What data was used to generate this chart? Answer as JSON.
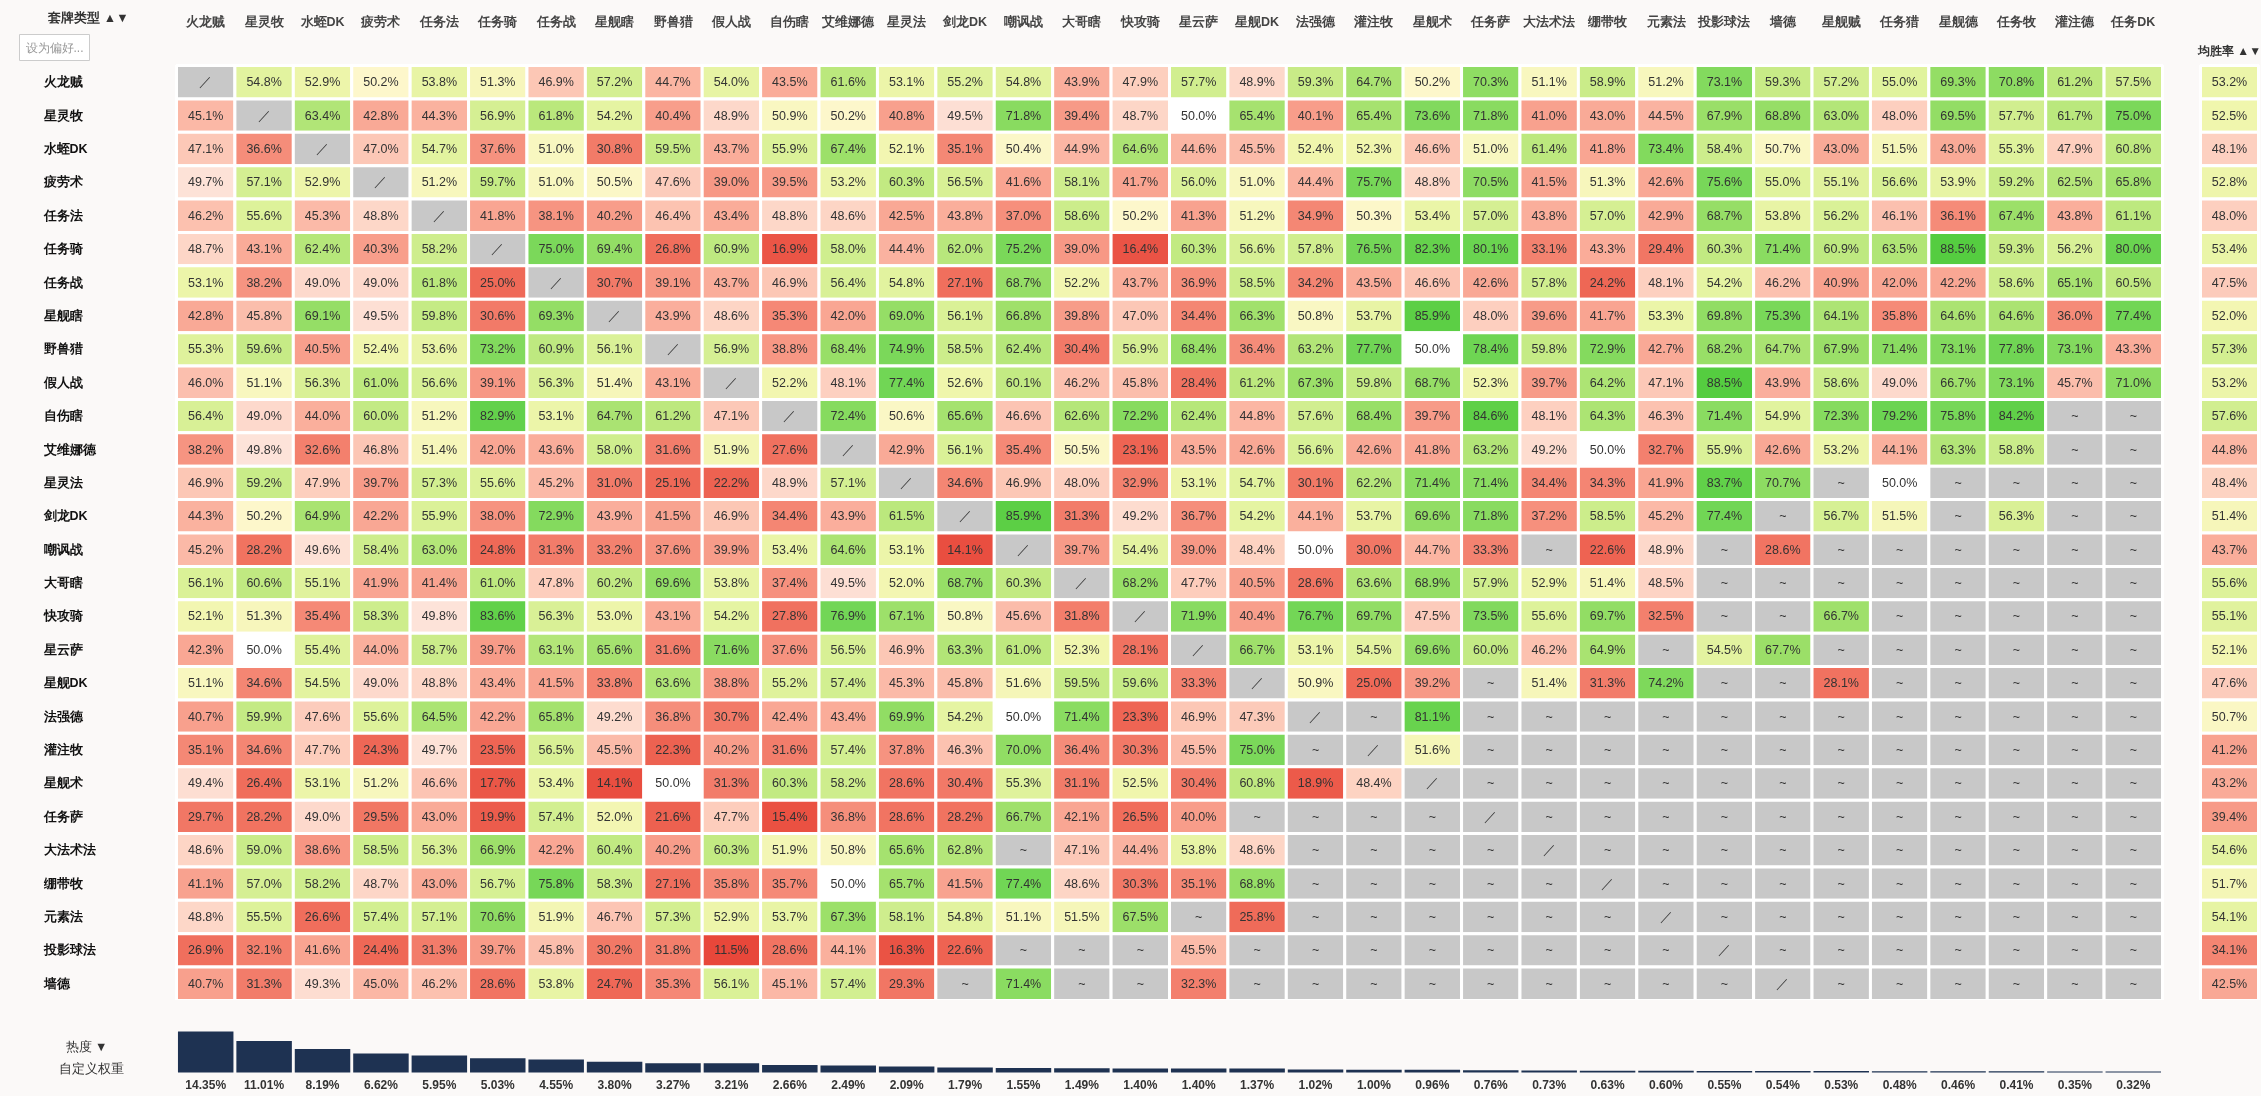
{
  "chart_data": [
    {
      "type": "heatmap",
      "ylabel": "套牌类型 ▲▼",
      "annotations": [
        "设为偏好..."
      ],
      "categories": [
        "火龙贼",
        "星灵牧",
        "水蛭DK",
        "疲劳术",
        "任务法",
        "任务骑",
        "任务战",
        "星舰瞎",
        "野兽猎",
        "假人战",
        "自伤瞎",
        "艾维娜德",
        "星灵法",
        "剑龙DK",
        "嘲讽战",
        "大哥瞎",
        "快攻骑",
        "星云萨",
        "星舰DK",
        "法强德",
        "灌注牧",
        "星舰术",
        "任务萨",
        "大法术法",
        "绷带牧",
        "元素法",
        "投影球法",
        "墙德",
        "星舰贼",
        "任务猎",
        "星舰德",
        "任务牧",
        "灌注德",
        "任务DK"
      ],
      "y_categories": [
        "火龙贼",
        "星灵牧",
        "水蛭DK",
        "疲劳术",
        "任务法",
        "任务骑",
        "任务战",
        "星舰瞎",
        "野兽猎",
        "假人战",
        "自伤瞎",
        "艾维娜德",
        "星灵法",
        "剑龙DK",
        "嘲讽战",
        "大哥瞎",
        "快攻骑",
        "星云萨",
        "星舰DK",
        "法强德",
        "灌注牧",
        "星舰术",
        "任务萨",
        "大法术法",
        "绷带牧",
        "元素法",
        "投影球法",
        "墙德"
      ],
      "cells": [
        [
          null,
          54.8,
          52.9,
          50.2,
          53.8,
          51.3,
          46.9,
          57.2,
          44.7,
          54.0,
          43.5,
          61.6,
          53.1,
          55.2,
          54.8,
          43.9,
          47.9,
          57.7,
          48.9,
          59.3,
          64.7,
          50.2,
          70.3,
          51.1,
          58.9,
          51.2,
          73.1,
          59.3,
          57.2,
          55.0,
          69.3,
          70.8,
          61.2,
          57.5
        ],
        [
          45.1,
          null,
          63.4,
          42.8,
          44.3,
          56.9,
          61.8,
          54.2,
          40.4,
          48.9,
          50.9,
          50.2,
          40.8,
          49.5,
          71.8,
          39.4,
          48.7,
          50.0,
          65.4,
          40.1,
          65.4,
          73.6,
          71.8,
          41.0,
          43.0,
          44.5,
          67.9,
          68.8,
          63.0,
          48.0,
          69.5,
          57.7,
          61.7,
          75.0
        ],
        [
          47.1,
          36.6,
          null,
          47.0,
          54.7,
          37.6,
          51.0,
          30.8,
          59.5,
          43.7,
          55.9,
          67.4,
          52.1,
          35.1,
          50.4,
          44.9,
          64.6,
          44.6,
          45.5,
          52.4,
          52.3,
          46.6,
          51.0,
          61.4,
          41.8,
          73.4,
          58.4,
          50.7,
          43.0,
          51.5,
          43.0,
          55.3,
          47.9,
          60.8
        ],
        [
          49.7,
          57.1,
          52.9,
          null,
          51.2,
          59.7,
          51.0,
          50.5,
          47.6,
          39.0,
          39.5,
          53.2,
          60.3,
          56.5,
          41.6,
          58.1,
          41.7,
          56.0,
          51.0,
          44.4,
          75.7,
          48.8,
          70.5,
          41.5,
          51.3,
          42.6,
          75.6,
          55.0,
          55.1,
          56.6,
          53.9,
          59.2,
          62.5,
          65.8
        ],
        [
          46.2,
          55.6,
          45.3,
          48.8,
          null,
          41.8,
          38.1,
          40.2,
          46.4,
          43.4,
          48.8,
          48.6,
          42.5,
          43.8,
          37.0,
          58.6,
          50.2,
          41.3,
          51.2,
          34.9,
          50.3,
          53.4,
          57.0,
          43.8,
          57.0,
          42.9,
          68.7,
          53.8,
          56.2,
          46.1,
          36.1,
          67.4,
          43.8,
          61.1
        ],
        [
          48.7,
          43.1,
          62.4,
          40.3,
          58.2,
          null,
          75.0,
          69.4,
          26.8,
          60.9,
          16.9,
          58.0,
          44.4,
          62.0,
          75.2,
          39.0,
          16.4,
          60.3,
          56.6,
          57.8,
          76.5,
          82.3,
          80.1,
          33.1,
          43.3,
          29.4,
          60.3,
          71.4,
          60.9,
          63.5,
          88.5,
          59.3,
          56.2,
          80.0
        ],
        [
          53.1,
          38.2,
          49.0,
          49.0,
          61.8,
          25.0,
          null,
          30.7,
          39.1,
          43.7,
          46.9,
          56.4,
          54.8,
          27.1,
          68.7,
          52.2,
          43.7,
          36.9,
          58.5,
          34.2,
          43.5,
          46.6,
          42.6,
          57.8,
          24.2,
          48.1,
          54.2,
          46.2,
          40.9,
          42.0,
          42.2,
          58.6,
          65.1,
          60.5
        ],
        [
          42.8,
          45.8,
          69.1,
          49.5,
          59.8,
          30.6,
          69.3,
          null,
          43.9,
          48.6,
          35.3,
          42.0,
          69.0,
          56.1,
          66.8,
          39.8,
          47.0,
          34.4,
          66.3,
          50.8,
          53.7,
          85.9,
          48.0,
          39.6,
          41.7,
          53.3,
          69.8,
          75.3,
          64.1,
          35.8,
          64.6,
          64.6,
          36.0,
          77.4
        ],
        [
          55.3,
          59.6,
          40.5,
          52.4,
          53.6,
          73.2,
          60.9,
          56.1,
          null,
          56.9,
          38.8,
          68.4,
          74.9,
          58.5,
          62.4,
          30.4,
          56.9,
          68.4,
          36.4,
          63.2,
          77.7,
          50.0,
          78.4,
          59.8,
          72.9,
          42.7,
          68.2,
          64.7,
          67.9,
          71.4,
          73.1,
          77.8,
          73.1,
          43.3
        ],
        [
          46.0,
          51.1,
          56.3,
          61.0,
          56.6,
          39.1,
          56.3,
          51.4,
          43.1,
          null,
          52.2,
          48.1,
          77.4,
          52.6,
          60.1,
          46.2,
          45.8,
          28.4,
          61.2,
          67.3,
          59.8,
          68.7,
          52.3,
          39.7,
          64.2,
          47.1,
          88.5,
          43.9,
          58.6,
          49.0,
          66.7,
          73.1,
          45.7,
          71.0
        ],
        [
          56.4,
          49.0,
          44.0,
          60.0,
          51.2,
          82.9,
          53.1,
          64.7,
          61.2,
          47.1,
          null,
          72.4,
          50.6,
          65.6,
          46.6,
          62.6,
          72.2,
          62.4,
          44.8,
          57.6,
          68.4,
          39.7,
          84.6,
          48.1,
          64.3,
          46.3,
          71.4,
          54.9,
          72.3,
          79.2,
          75.8,
          84.2,
          null,
          null
        ],
        [
          38.2,
          49.8,
          32.6,
          46.8,
          51.4,
          42.0,
          43.6,
          58.0,
          31.6,
          51.9,
          27.6,
          null,
          42.9,
          56.1,
          35.4,
          50.5,
          23.1,
          43.5,
          42.6,
          56.6,
          42.6,
          41.8,
          63.2,
          49.2,
          50.0,
          32.7,
          55.9,
          42.6,
          53.2,
          44.1,
          63.3,
          58.8,
          null,
          null
        ],
        [
          46.9,
          59.2,
          47.9,
          39.7,
          57.3,
          55.6,
          45.2,
          31.0,
          25.1,
          22.2,
          48.9,
          57.1,
          null,
          34.6,
          46.9,
          48.0,
          32.9,
          53.1,
          54.7,
          30.1,
          62.2,
          71.4,
          71.4,
          34.4,
          34.3,
          41.9,
          83.7,
          70.7,
          null,
          50.0,
          null,
          null,
          null,
          null
        ],
        [
          44.3,
          50.2,
          64.9,
          42.2,
          55.9,
          38.0,
          72.9,
          43.9,
          41.5,
          46.9,
          34.4,
          43.9,
          61.5,
          null,
          85.9,
          31.3,
          49.2,
          36.7,
          54.2,
          44.1,
          53.7,
          69.6,
          71.8,
          37.2,
          58.5,
          45.2,
          77.4,
          null,
          56.7,
          51.5,
          null,
          56.3,
          null,
          null
        ],
        [
          45.2,
          28.2,
          49.6,
          58.4,
          63.0,
          24.8,
          31.3,
          33.2,
          37.6,
          39.9,
          53.4,
          64.6,
          53.1,
          14.1,
          null,
          39.7,
          54.4,
          39.0,
          48.4,
          50.0,
          30.0,
          44.7,
          33.3,
          null,
          22.6,
          48.9,
          null,
          28.6,
          null,
          null,
          null,
          null,
          null,
          null
        ],
        [
          56.1,
          60.6,
          55.1,
          41.9,
          41.4,
          61.0,
          47.8,
          60.2,
          69.6,
          53.8,
          37.4,
          49.5,
          52.0,
          68.7,
          60.3,
          null,
          68.2,
          47.7,
          40.5,
          28.6,
          63.6,
          68.9,
          57.9,
          52.9,
          51.4,
          48.5,
          null,
          null,
          null,
          null,
          null,
          null,
          null,
          null
        ],
        [
          52.1,
          51.3,
          35.4,
          58.3,
          49.8,
          83.6,
          56.3,
          53.0,
          43.1,
          54.2,
          27.8,
          76.9,
          67.1,
          50.8,
          45.6,
          31.8,
          null,
          71.9,
          40.4,
          76.7,
          69.7,
          47.5,
          73.5,
          55.6,
          69.7,
          32.5,
          null,
          null,
          66.7,
          null,
          null,
          null,
          null,
          null
        ],
        [
          42.3,
          50.0,
          55.4,
          44.0,
          58.7,
          39.7,
          63.1,
          65.6,
          31.6,
          71.6,
          37.6,
          56.5,
          46.9,
          63.3,
          61.0,
          52.3,
          28.1,
          null,
          66.7,
          53.1,
          54.5,
          69.6,
          60.0,
          46.2,
          64.9,
          null,
          54.5,
          67.7,
          null,
          null,
          null,
          null,
          null,
          null
        ],
        [
          51.1,
          34.6,
          54.5,
          49.0,
          48.8,
          43.4,
          41.5,
          33.8,
          63.6,
          38.8,
          55.2,
          57.4,
          45.3,
          45.8,
          51.6,
          59.5,
          59.6,
          33.3,
          null,
          50.9,
          25.0,
          39.2,
          null,
          51.4,
          31.3,
          74.2,
          null,
          null,
          28.1,
          null,
          null,
          null,
          null,
          null
        ],
        [
          40.7,
          59.9,
          47.6,
          55.6,
          64.5,
          42.2,
          65.8,
          49.2,
          36.8,
          30.7,
          42.4,
          43.4,
          69.9,
          54.2,
          50.0,
          71.4,
          23.3,
          46.9,
          47.3,
          null,
          null,
          81.1,
          null,
          null,
          null,
          null,
          null,
          null,
          null,
          null,
          null,
          null,
          null,
          null
        ],
        [
          35.1,
          34.6,
          47.7,
          24.3,
          49.7,
          23.5,
          56.5,
          45.5,
          22.3,
          40.2,
          31.6,
          57.4,
          37.8,
          46.3,
          70.0,
          36.4,
          30.3,
          45.5,
          75.0,
          null,
          null,
          51.6,
          null,
          null,
          null,
          null,
          null,
          null,
          null,
          null,
          null,
          null,
          null,
          null
        ],
        [
          49.4,
          26.4,
          53.1,
          51.2,
          46.6,
          17.7,
          53.4,
          14.1,
          50.0,
          31.3,
          60.3,
          58.2,
          28.6,
          30.4,
          55.3,
          31.1,
          52.5,
          30.4,
          60.8,
          18.9,
          48.4,
          null,
          null,
          null,
          null,
          null,
          null,
          null,
          null,
          null,
          null,
          null,
          null,
          null
        ],
        [
          29.7,
          28.2,
          49.0,
          29.5,
          43.0,
          19.9,
          57.4,
          52.0,
          21.6,
          47.7,
          15.4,
          36.8,
          28.6,
          28.2,
          66.7,
          42.1,
          26.5,
          40.0,
          null,
          null,
          null,
          null,
          null,
          null,
          null,
          null,
          null,
          null,
          null,
          null,
          null,
          null,
          null,
          null
        ],
        [
          48.6,
          59.0,
          38.6,
          58.5,
          56.3,
          66.9,
          42.2,
          60.4,
          40.2,
          60.3,
          51.9,
          50.8,
          65.6,
          62.8,
          null,
          47.1,
          44.4,
          53.8,
          48.6,
          null,
          null,
          null,
          null,
          null,
          null,
          null,
          null,
          null,
          null,
          null,
          null,
          null,
          null,
          null
        ],
        [
          41.1,
          57.0,
          58.2,
          48.7,
          43.0,
          56.7,
          75.8,
          58.3,
          27.1,
          35.8,
          35.7,
          50.0,
          65.7,
          41.5,
          77.4,
          48.6,
          30.3,
          35.1,
          68.8,
          null,
          null,
          null,
          null,
          null,
          null,
          null,
          null,
          null,
          null,
          null,
          null,
          null,
          null,
          null
        ],
        [
          48.8,
          55.5,
          26.6,
          57.4,
          57.1,
          70.6,
          51.9,
          46.7,
          57.3,
          52.9,
          53.7,
          67.3,
          58.1,
          54.8,
          51.1,
          51.5,
          67.5,
          null,
          25.8,
          null,
          null,
          null,
          null,
          null,
          null,
          null,
          null,
          null,
          null,
          null,
          null,
          null,
          null,
          null
        ],
        [
          26.9,
          32.1,
          41.6,
          24.4,
          31.3,
          39.7,
          45.8,
          30.2,
          31.8,
          11.5,
          28.6,
          44.1,
          16.3,
          22.6,
          null,
          null,
          null,
          45.5,
          null,
          null,
          null,
          null,
          null,
          null,
          null,
          null,
          null,
          null,
          null,
          null,
          null,
          null,
          null,
          null
        ],
        [
          40.7,
          31.3,
          49.3,
          45.0,
          46.2,
          28.6,
          53.8,
          24.7,
          35.3,
          56.1,
          45.1,
          57.4,
          29.3,
          null,
          71.4,
          null,
          null,
          32.3,
          null,
          null,
          null,
          null,
          null,
          null,
          null,
          null,
          null,
          null,
          null,
          null,
          null,
          null,
          null,
          null
        ]
      ],
      "cell_labels": [
        [
          "／",
          "54.8%",
          "52.9%",
          "50.2%",
          "53.8%",
          "51.3%",
          "46.9%",
          "57.2%",
          "44.7%",
          "54.0%",
          "43.5%",
          "61.6%",
          "53.1%",
          "55.2%",
          "54.8%",
          "43.9%",
          "47.9%",
          "57.7%",
          "48.9%",
          "59.3%",
          "64.7%",
          "50.2%",
          "70.3%",
          "51.1%",
          "58.9%",
          "51.2%",
          "73.1%",
          "59.3%",
          "57.2%",
          "55.0%",
          "69.3%",
          "70.8%",
          "61.2%",
          "57.5%"
        ],
        [
          "45.1%",
          "／",
          "63.4%",
          "42.8%",
          "44.3%",
          "56.9%",
          "61.8%",
          "54.2%",
          "40.4%",
          "48.9%",
          "50.9%",
          "50.2%",
          "40.8%",
          "49.5%",
          "71.8%",
          "39.4%",
          "48.7%",
          "50.0%",
          "65.4%",
          "40.1%",
          "65.4%",
          "73.6%",
          "71.8%",
          "41.0%",
          "43.0%",
          "44.5%",
          "67.9%",
          "68.8%",
          "63.0%",
          "48.0%",
          "69.5%",
          "57.7%",
          "61.7%",
          "75.0%"
        ],
        [
          "47.1%",
          "36.6%",
          "／",
          "47.0%",
          "54.7%",
          "37.6%",
          "51.0%",
          "30.8%",
          "59.5%",
          "43.7%",
          "55.9%",
          "67.4%",
          "52.1%",
          "35.1%",
          "50.4%",
          "44.9%",
          "64.6%",
          "44.6%",
          "45.5%",
          "52.4%",
          "52.3%",
          "46.6%",
          "51.0%",
          "61.4%",
          "41.8%",
          "73.4%",
          "58.4%",
          "50.7%",
          "43.0%",
          "51.5%",
          "43.0%",
          "55.3%",
          "47.9%",
          "60.8%"
        ],
        [
          "49.7%",
          "57.1%",
          "52.9%",
          "／",
          "51.2%",
          "59.7%",
          "51.0%",
          "50.5%",
          "47.6%",
          "39.0%",
          "39.5%",
          "53.2%",
          "60.3%",
          "56.5%",
          "41.6%",
          "58.1%",
          "41.7%",
          "56.0%",
          "51.0%",
          "44.4%",
          "75.7%",
          "48.8%",
          "70.5%",
          "41.5%",
          "51.3%",
          "42.6%",
          "75.6%",
          "55.0%",
          "55.1%",
          "56.6%",
          "53.9%",
          "59.2%",
          "62.5%",
          "65.8%"
        ],
        [
          "46.2%",
          "55.6%",
          "45.3%",
          "48.8%",
          "／",
          "41.8%",
          "38.1%",
          "40.2%",
          "46.4%",
          "43.4%",
          "48.8%",
          "48.6%",
          "42.5%",
          "43.8%",
          "37.0%",
          "58.6%",
          "50.2%",
          "41.3%",
          "51.2%",
          "34.9%",
          "50.3%",
          "53.4%",
          "57.0%",
          "43.8%",
          "57.0%",
          "42.9%",
          "68.7%",
          "53.8%",
          "56.2%",
          "46.1%",
          "36.1%",
          "67.4%",
          "43.8%",
          "61.1%"
        ],
        [
          "48.7%",
          "43.1%",
          "62.4%",
          "40.3%",
          "58.2%",
          "／",
          "75.0%",
          "69.4%",
          "26.8%",
          "60.9%",
          "16.9%",
          "58.0%",
          "44.4%",
          "62.0%",
          "75.2%",
          "39.0%",
          "16.4%",
          "60.3%",
          "56.6%",
          "57.8%",
          "76.5%",
          "82.3%",
          "80.1%",
          "33.1%",
          "43.3%",
          "29.4%",
          "60.3%",
          "71.4%",
          "60.9%",
          "63.5%",
          "88.5%",
          "59.3%",
          "56.2%",
          "80.0%"
        ],
        [
          "53.1%",
          "38.2%",
          "49.0%",
          "49.0%",
          "61.8%",
          "25.0%",
          "／",
          "30.7%",
          "39.1%",
          "43.7%",
          "46.9%",
          "56.4%",
          "54.8%",
          "27.1%",
          "68.7%",
          "52.2%",
          "43.7%",
          "36.9%",
          "58.5%",
          "34.2%",
          "43.5%",
          "46.6%",
          "42.6%",
          "57.8%",
          "24.2%",
          "48.1%",
          "54.2%",
          "46.2%",
          "40.9%",
          "42.0%",
          "42.2%",
          "58.6%",
          "65.1%",
          "60.5%"
        ],
        [
          "42.8%",
          "45.8%",
          "69.1%",
          "49.5%",
          "59.8%",
          "30.6%",
          "69.3%",
          "／",
          "43.9%",
          "48.6%",
          "35.3%",
          "42.0%",
          "69.0%",
          "56.1%",
          "66.8%",
          "39.8%",
          "47.0%",
          "34.4%",
          "66.3%",
          "50.8%",
          "53.7%",
          "85.9%",
          "48.0%",
          "39.6%",
          "41.7%",
          "53.3%",
          "69.8%",
          "75.3%",
          "64.1%",
          "35.8%",
          "64.6%",
          "64.6%",
          "36.0%",
          "77.4%"
        ],
        [
          "55.3%",
          "59.6%",
          "40.5%",
          "52.4%",
          "53.6%",
          "73.2%",
          "60.9%",
          "56.1%",
          "／",
          "56.9%",
          "38.8%",
          "68.4%",
          "74.9%",
          "58.5%",
          "62.4%",
          "30.4%",
          "56.9%",
          "68.4%",
          "36.4%",
          "63.2%",
          "77.7%",
          "50.0%",
          "78.4%",
          "59.8%",
          "72.9%",
          "42.7%",
          "68.2%",
          "64.7%",
          "67.9%",
          "71.4%",
          "73.1%",
          "77.8%",
          "73.1%",
          "43.3%"
        ],
        [
          "46.0%",
          "51.1%",
          "56.3%",
          "61.0%",
          "56.6%",
          "39.1%",
          "56.3%",
          "51.4%",
          "43.1%",
          "／",
          "52.2%",
          "48.1%",
          "77.4%",
          "52.6%",
          "60.1%",
          "46.2%",
          "45.8%",
          "28.4%",
          "61.2%",
          "67.3%",
          "59.8%",
          "68.7%",
          "52.3%",
          "39.7%",
          "64.2%",
          "47.1%",
          "88.5%",
          "43.9%",
          "58.6%",
          "49.0%",
          "66.7%",
          "73.1%",
          "45.7%",
          "71.0%"
        ],
        [
          "56.4%",
          "49.0%",
          "44.0%",
          "60.0%",
          "51.2%",
          "82.9%",
          "53.1%",
          "64.7%",
          "61.2%",
          "47.1%",
          "／",
          "72.4%",
          "50.6%",
          "65.6%",
          "46.6%",
          "62.6%",
          "72.2%",
          "62.4%",
          "44.8%",
          "57.6%",
          "68.4%",
          "39.7%",
          "84.6%",
          "48.1%",
          "64.3%",
          "46.3%",
          "71.4%",
          "54.9%",
          "72.3%",
          "79.2%",
          "75.8%",
          "84.2%",
          "~",
          "~"
        ],
        [
          "38.2%",
          "49.8%",
          "32.6%",
          "46.8%",
          "51.4%",
          "42.0%",
          "43.6%",
          "58.0%",
          "31.6%",
          "51.9%",
          "27.6%",
          "／",
          "42.9%",
          "56.1%",
          "35.4%",
          "50.5%",
          "23.1%",
          "43.5%",
          "42.6%",
          "56.6%",
          "42.6%",
          "41.8%",
          "63.2%",
          "49.2%",
          "50.0%",
          "32.7%",
          "55.9%",
          "42.6%",
          "53.2%",
          "44.1%",
          "63.3%",
          "58.8%",
          "~",
          "~"
        ],
        [
          "46.9%",
          "59.2%",
          "47.9%",
          "39.7%",
          "57.3%",
          "55.6%",
          "45.2%",
          "31.0%",
          "25.1%",
          "22.2%",
          "48.9%",
          "57.1%",
          "／",
          "34.6%",
          "46.9%",
          "48.0%",
          "32.9%",
          "53.1%",
          "54.7%",
          "30.1%",
          "62.2%",
          "71.4%",
          "71.4%",
          "34.4%",
          "34.3%",
          "41.9%",
          "83.7%",
          "70.7%",
          "~",
          "50.0%",
          "~",
          "~",
          "~",
          "~"
        ],
        [
          "44.3%",
          "50.2%",
          "64.9%",
          "42.2%",
          "55.9%",
          "38.0%",
          "72.9%",
          "43.9%",
          "41.5%",
          "46.9%",
          "34.4%",
          "43.9%",
          "61.5%",
          "／",
          "85.9%",
          "31.3%",
          "49.2%",
          "36.7%",
          "54.2%",
          "44.1%",
          "53.7%",
          "69.6%",
          "71.8%",
          "37.2%",
          "58.5%",
          "45.2%",
          "77.4%",
          "~",
          "56.7%",
          "51.5%",
          "~",
          "56.3%",
          "~",
          "~"
        ],
        [
          "45.2%",
          "28.2%",
          "49.6%",
          "58.4%",
          "63.0%",
          "24.8%",
          "31.3%",
          "33.2%",
          "37.6%",
          "39.9%",
          "53.4%",
          "64.6%",
          "53.1%",
          "14.1%",
          "／",
          "39.7%",
          "54.4%",
          "39.0%",
          "48.4%",
          "50.0%",
          "30.0%",
          "44.7%",
          "33.3%",
          "~",
          "22.6%",
          "48.9%",
          "~",
          "28.6%",
          "~",
          "~",
          "~",
          "~",
          "~",
          "~"
        ],
        [
          "56.1%",
          "60.6%",
          "55.1%",
          "41.9%",
          "41.4%",
          "61.0%",
          "47.8%",
          "60.2%",
          "69.6%",
          "53.8%",
          "37.4%",
          "49.5%",
          "52.0%",
          "68.7%",
          "60.3%",
          "／",
          "68.2%",
          "47.7%",
          "40.5%",
          "28.6%",
          "63.6%",
          "68.9%",
          "57.9%",
          "52.9%",
          "51.4%",
          "48.5%",
          "~",
          "~",
          "~",
          "~",
          "~",
          "~",
          "~",
          "~"
        ],
        [
          "52.1%",
          "51.3%",
          "35.4%",
          "58.3%",
          "49.8%",
          "83.6%",
          "56.3%",
          "53.0%",
          "43.1%",
          "54.2%",
          "27.8%",
          "76.9%",
          "67.1%",
          "50.8%",
          "45.6%",
          "31.8%",
          "／",
          "71.9%",
          "40.4%",
          "76.7%",
          "69.7%",
          "47.5%",
          "73.5%",
          "55.6%",
          "69.7%",
          "32.5%",
          "~",
          "~",
          "66.7%",
          "~",
          "~",
          "~",
          "~",
          "~"
        ],
        [
          "42.3%",
          "50.0%",
          "55.4%",
          "44.0%",
          "58.7%",
          "39.7%",
          "63.1%",
          "65.6%",
          "31.6%",
          "71.6%",
          "37.6%",
          "56.5%",
          "46.9%",
          "63.3%",
          "61.0%",
          "52.3%",
          "28.1%",
          "／",
          "66.7%",
          "53.1%",
          "54.5%",
          "69.6%",
          "60.0%",
          "46.2%",
          "64.9%",
          "~",
          "54.5%",
          "67.7%",
          "~",
          "~",
          "~",
          "~",
          "~",
          "~"
        ],
        [
          "51.1%",
          "34.6%",
          "54.5%",
          "49.0%",
          "48.8%",
          "43.4%",
          "41.5%",
          "33.8%",
          "63.6%",
          "38.8%",
          "55.2%",
          "57.4%",
          "45.3%",
          "45.8%",
          "51.6%",
          "59.5%",
          "59.6%",
          "33.3%",
          "／",
          "50.9%",
          "25.0%",
          "39.2%",
          "~",
          "51.4%",
          "31.3%",
          "74.2%",
          "~",
          "~",
          "28.1%",
          "~",
          "~",
          "~",
          "~",
          "~"
        ],
        [
          "40.7%",
          "59.9%",
          "47.6%",
          "55.6%",
          "64.5%",
          "42.2%",
          "65.8%",
          "49.2%",
          "36.8%",
          "30.7%",
          "42.4%",
          "43.4%",
          "69.9%",
          "54.2%",
          "50.0%",
          "71.4%",
          "23.3%",
          "46.9%",
          "47.3%",
          "／",
          "~",
          "81.1%",
          "~",
          "~",
          "~",
          "~",
          "~",
          "~",
          "~",
          "~",
          "~",
          "~",
          "~",
          "~"
        ],
        [
          "35.1%",
          "34.6%",
          "47.7%",
          "24.3%",
          "49.7%",
          "23.5%",
          "56.5%",
          "45.5%",
          "22.3%",
          "40.2%",
          "31.6%",
          "57.4%",
          "37.8%",
          "46.3%",
          "70.0%",
          "36.4%",
          "30.3%",
          "45.5%",
          "75.0%",
          "~",
          "／",
          "51.6%",
          "~",
          "~",
          "~",
          "~",
          "~",
          "~",
          "~",
          "~",
          "~",
          "~",
          "~",
          "~"
        ],
        [
          "49.4%",
          "26.4%",
          "53.1%",
          "51.2%",
          "46.6%",
          "17.7%",
          "53.4%",
          "14.1%",
          "50.0%",
          "31.3%",
          "60.3%",
          "58.2%",
          "28.6%",
          "30.4%",
          "55.3%",
          "31.1%",
          "52.5%",
          "30.4%",
          "60.8%",
          "18.9%",
          "48.4%",
          "／",
          "~",
          "~",
          "~",
          "~",
          "~",
          "~",
          "~",
          "~",
          "~",
          "~",
          "~",
          "~"
        ],
        [
          "29.7%",
          "28.2%",
          "49.0%",
          "29.5%",
          "43.0%",
          "19.9%",
          "57.4%",
          "52.0%",
          "21.6%",
          "47.7%",
          "15.4%",
          "36.8%",
          "28.6%",
          "28.2%",
          "66.7%",
          "42.1%",
          "26.5%",
          "40.0%",
          "~",
          "~",
          "~",
          "~",
          "／",
          "~",
          "~",
          "~",
          "~",
          "~",
          "~",
          "~",
          "~",
          "~",
          "~",
          "~"
        ],
        [
          "48.6%",
          "59.0%",
          "38.6%",
          "58.5%",
          "56.3%",
          "66.9%",
          "42.2%",
          "60.4%",
          "40.2%",
          "60.3%",
          "51.9%",
          "50.8%",
          "65.6%",
          "62.8%",
          "~",
          "47.1%",
          "44.4%",
          "53.8%",
          "48.6%",
          "~",
          "~",
          "~",
          "~",
          "／",
          "~",
          "~",
          "~",
          "~",
          "~",
          "~",
          "~",
          "~",
          "~",
          "~"
        ],
        [
          "41.1%",
          "57.0%",
          "58.2%",
          "48.7%",
          "43.0%",
          "56.7%",
          "75.8%",
          "58.3%",
          "27.1%",
          "35.8%",
          "35.7%",
          "50.0%",
          "65.7%",
          "41.5%",
          "77.4%",
          "48.6%",
          "30.3%",
          "35.1%",
          "68.8%",
          "~",
          "~",
          "~",
          "~",
          "~",
          "／",
          "~",
          "~",
          "~",
          "~",
          "~",
          "~",
          "~",
          "~",
          "~"
        ],
        [
          "48.8%",
          "55.5%",
          "26.6%",
          "57.4%",
          "57.1%",
          "70.6%",
          "51.9%",
          "46.7%",
          "57.3%",
          "52.9%",
          "53.7%",
          "67.3%",
          "58.1%",
          "54.8%",
          "51.1%",
          "51.5%",
          "67.5%",
          "~",
          "25.8%",
          "~",
          "~",
          "~",
          "~",
          "~",
          "~",
          "／",
          "~",
          "~",
          "~",
          "~",
          "~",
          "~",
          "~",
          "~"
        ],
        [
          "26.9%",
          "32.1%",
          "41.6%",
          "24.4%",
          "31.3%",
          "39.7%",
          "45.8%",
          "30.2%",
          "31.8%",
          "11.5%",
          "28.6%",
          "44.1%",
          "16.3%",
          "22.6%",
          "~",
          "~",
          "~",
          "45.5%",
          "~",
          "~",
          "~",
          "~",
          "~",
          "~",
          "~",
          "~",
          "／",
          "~",
          "~",
          "~",
          "~",
          "~",
          "~",
          "~"
        ],
        [
          "40.7%",
          "31.3%",
          "49.3%",
          "45.0%",
          "46.2%",
          "28.6%",
          "53.8%",
          "24.7%",
          "35.3%",
          "56.1%",
          "45.1%",
          "57.4%",
          "29.3%",
          "~",
          "71.4%",
          "~",
          "~",
          "32.3%",
          "~",
          "~",
          "~",
          "~",
          "~",
          "~",
          "~",
          "~",
          "~",
          "／",
          "~",
          "~",
          "~",
          "~",
          "~",
          "~"
        ]
      ]
    },
    {
      "type": "heatmap",
      "title": "均胜率 ▲▼",
      "categories": [
        null
      ],
      "y_categories": [
        null,
        null,
        null,
        null,
        null,
        null,
        null,
        null,
        null,
        null,
        null,
        null,
        null,
        null,
        null,
        null,
        null,
        null,
        null,
        null,
        null,
        null,
        null,
        null,
        null,
        null,
        null,
        null
      ],
      "cells": [
        [
          53.2
        ],
        [
          52.5
        ],
        [
          48.1
        ],
        [
          52.8
        ],
        [
          48.0
        ],
        [
          53.4
        ],
        [
          47.5
        ],
        [
          52.0
        ],
        [
          57.3
        ],
        [
          53.2
        ],
        [
          57.6
        ],
        [
          44.8
        ],
        [
          48.4
        ],
        [
          51.4
        ],
        [
          43.7
        ],
        [
          55.6
        ],
        [
          55.1
        ],
        [
          52.1
        ],
        [
          47.6
        ],
        [
          50.7
        ],
        [
          41.2
        ],
        [
          43.2
        ],
        [
          39.4
        ],
        [
          54.6
        ],
        [
          51.7
        ],
        [
          54.1
        ],
        [
          34.1
        ],
        [
          42.5
        ]
      ],
      "cell_labels": [
        [
          "53.2%"
        ],
        [
          "52.5%"
        ],
        [
          "48.1%"
        ],
        [
          "52.8%"
        ],
        [
          "48.0%"
        ],
        [
          "53.4%"
        ],
        [
          "47.5%"
        ],
        [
          "52.0%"
        ],
        [
          "57.3%"
        ],
        [
          "53.2%"
        ],
        [
          "57.6%"
        ],
        [
          "44.8%"
        ],
        [
          "48.4%"
        ],
        [
          "51.4%"
        ],
        [
          "43.7%"
        ],
        [
          "55.6%"
        ],
        [
          "55.1%"
        ],
        [
          "52.1%"
        ],
        [
          "47.6%"
        ],
        [
          "50.7%"
        ],
        [
          "41.2%"
        ],
        [
          "43.2%"
        ],
        [
          "39.4%"
        ],
        [
          "54.6%"
        ],
        [
          "51.7%"
        ],
        [
          "54.1%"
        ],
        [
          "34.1%"
        ],
        [
          "42.5%"
        ]
      ]
    },
    {
      "type": "bar",
      "title": "热度 ▼",
      "annotations": [
        "自定义权重"
      ],
      "categories": [
        null,
        null,
        null,
        null,
        null,
        null,
        null,
        null,
        null,
        null,
        null,
        null,
        null,
        null,
        null,
        null,
        null,
        null,
        null,
        null,
        null,
        null,
        null,
        null,
        null,
        null,
        null,
        null,
        null,
        null,
        null,
        null,
        null,
        null
      ],
      "color": "#1e3252",
      "values": [
        14.35,
        11.01,
        8.19,
        6.62,
        5.95,
        5.03,
        4.55,
        3.8,
        3.27,
        3.21,
        2.66,
        2.49,
        2.09,
        1.79,
        1.55,
        1.49,
        1.4,
        1.4,
        1.37,
        1.02,
        1.0,
        0.96,
        0.76,
        0.73,
        0.63,
        0.6,
        0.55,
        0.54,
        0.53,
        0.48,
        0.46,
        0.41,
        0.35,
        0.32
      ],
      "value_labels": [
        "14.35%",
        "11.01%",
        "8.19%",
        "6.62%",
        "5.95%",
        "5.03%",
        "4.55%",
        "3.80%",
        "3.27%",
        "3.21%",
        "2.66%",
        "2.49%",
        "2.09%",
        "1.79%",
        "1.55%",
        "1.49%",
        "1.40%",
        "1.40%",
        "1.37%",
        "1.02%",
        "1.00%",
        "0.96%",
        "0.76%",
        "0.73%",
        "0.63%",
        "0.60%",
        "0.55%",
        "0.54%",
        "0.53%",
        "0.48%",
        "0.46%",
        "0.41%",
        "0.35%",
        "0.32%"
      ]
    }
  ]
}
